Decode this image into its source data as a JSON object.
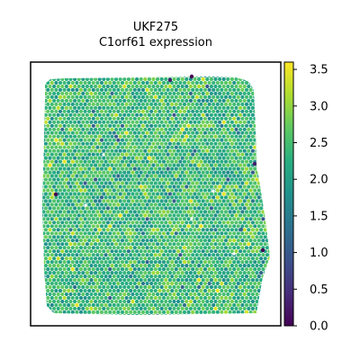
{
  "chart_data": {
    "type": "scatter",
    "title": "UKF275",
    "subtitle": "C1orf61 expression",
    "xlabel": "",
    "ylabel": "",
    "axes_ticks_visible": false,
    "grid": false,
    "colormap": "viridis",
    "color_range": [
      0.0,
      3.6
    ],
    "colorbar": {
      "placement": "right",
      "ticks": [
        0.0,
        0.5,
        1.0,
        1.5,
        2.0,
        2.5,
        3.0,
        3.5
      ],
      "tick_labels": [
        "0.0",
        "0.5",
        "1.0",
        "1.5",
        "2.0",
        "2.5",
        "3.0",
        "3.5"
      ]
    },
    "typical_value_range": [
      1.8,
      3.0
    ],
    "notable_low_values": [
      0.0,
      0.3,
      1.2
    ]
  }
}
